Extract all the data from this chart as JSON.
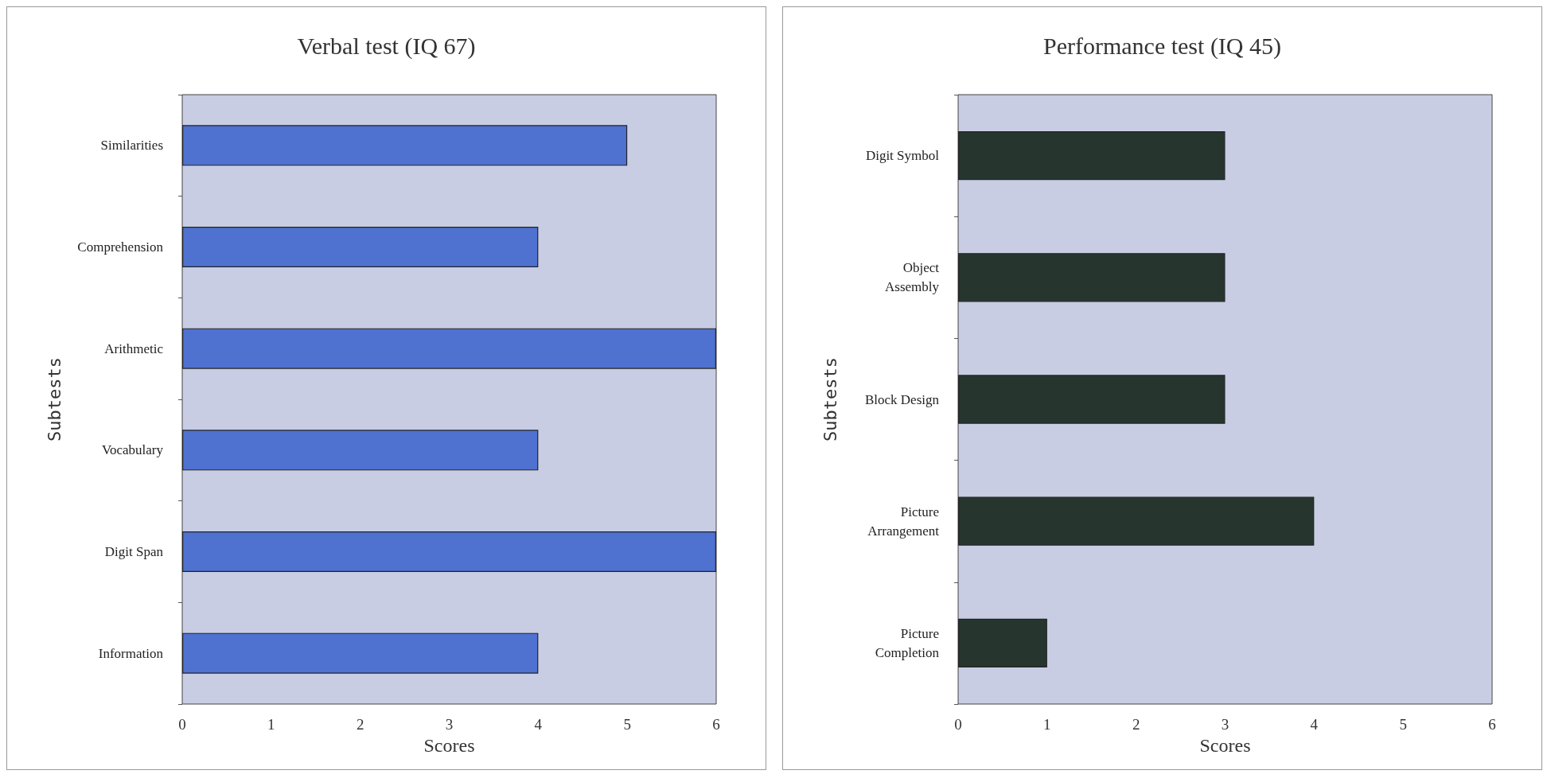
{
  "chart_data": [
    {
      "type": "bar",
      "orientation": "horizontal",
      "title": "Verbal test (IQ 67)",
      "xlabel": "Scores",
      "ylabel": "Subtests",
      "categories": [
        "Similarities",
        "Comprehension",
        "Arithmetic",
        "Vocabulary",
        "Digit Span",
        "Information"
      ],
      "series": [
        {
          "color": "#4f72d0",
          "values": [
            5,
            4,
            6,
            4,
            6,
            4
          ]
        }
      ],
      "xlim": [
        0,
        6
      ],
      "xticks": [
        0,
        1,
        2,
        3,
        4,
        5,
        6
      ],
      "grid": false
    },
    {
      "type": "bar",
      "orientation": "horizontal",
      "title": "Performance test (IQ 45)",
      "xlabel": "Scores",
      "ylabel": "Subtests",
      "categories": [
        "Digit Symbol",
        "Object Assembly",
        "Block Design",
        "Picture Arrangement",
        "Picture Completion"
      ],
      "series": [
        {
          "color": "#26362f",
          "values": [
            3,
            3,
            3,
            4,
            1
          ]
        }
      ],
      "xlim": [
        0,
        6
      ],
      "xticks": [
        0,
        1,
        2,
        3,
        4,
        5,
        6
      ],
      "grid": false
    }
  ]
}
